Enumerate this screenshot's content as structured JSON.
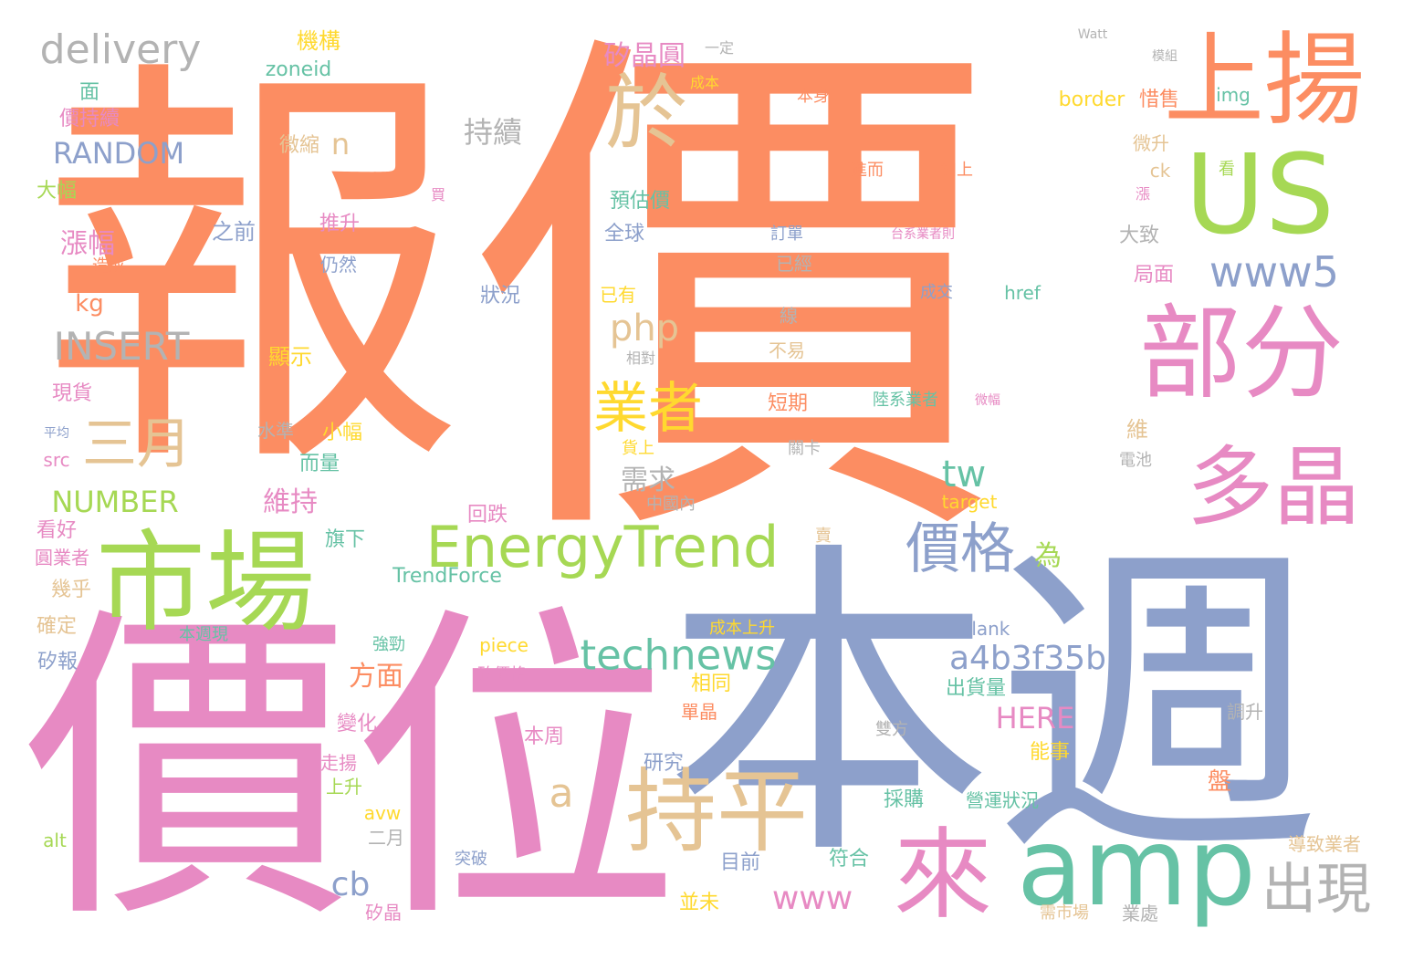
{
  "cloud": {
    "colors": {
      "orange": "#fc8d62",
      "blue": "#8da0cb",
      "pink": "#e78ac3",
      "green": "#a6d854",
      "yellow": "#ffd92f",
      "tan": "#e5c494",
      "gray": "#b3b3b3",
      "teal": "#66c2a5"
    },
    "words": [
      {
        "t": "報",
        "c": "orange"
      },
      {
        "t": "價",
        "c": "orange"
      },
      {
        "t": "本週",
        "c": "blue"
      },
      {
        "t": "價位",
        "c": "pink"
      },
      {
        "t": "上揚",
        "c": "orange"
      },
      {
        "t": "US",
        "c": "green"
      },
      {
        "t": "市場",
        "c": "green"
      },
      {
        "t": "部分",
        "c": "pink"
      },
      {
        "t": "amp",
        "c": "teal"
      },
      {
        "t": "持平",
        "c": "tan"
      },
      {
        "t": "來",
        "c": "pink"
      },
      {
        "t": "多晶",
        "c": "pink"
      },
      {
        "t": "於",
        "c": "tan"
      },
      {
        "t": "EnergyTrend",
        "c": "green"
      },
      {
        "t": "價格",
        "c": "blue"
      },
      {
        "t": "出現",
        "c": "gray"
      },
      {
        "t": "三月",
        "c": "tan"
      },
      {
        "t": "業者",
        "c": "yellow"
      },
      {
        "t": "technews",
        "c": "teal"
      },
      {
        "t": "www5",
        "c": "blue"
      },
      {
        "t": "a4b3f35b",
        "c": "blue"
      },
      {
        "t": "delivery",
        "c": "gray"
      },
      {
        "t": "INSERT",
        "c": "gray"
      },
      {
        "t": "php",
        "c": "tan"
      },
      {
        "t": "RANDOM",
        "c": "blue"
      },
      {
        "t": "NUMBER",
        "c": "green"
      },
      {
        "t": "www",
        "c": "pink"
      },
      {
        "t": "tw",
        "c": "teal"
      },
      {
        "t": "a",
        "c": "tan"
      },
      {
        "t": "cb",
        "c": "blue"
      },
      {
        "t": "持續",
        "c": "gray"
      },
      {
        "t": "矽晶圓",
        "c": "pink"
      },
      {
        "t": "漲幅",
        "c": "pink"
      },
      {
        "t": "方面",
        "c": "orange"
      },
      {
        "t": "需求",
        "c": "gray"
      },
      {
        "t": "維持",
        "c": "pink"
      },
      {
        "t": "HERE",
        "c": "pink"
      },
      {
        "t": "n",
        "c": "tan"
      },
      {
        "t": "kg",
        "c": "orange"
      },
      {
        "t": "為",
        "c": "green"
      },
      {
        "t": "TrendForce",
        "c": "teal"
      },
      {
        "t": "機構",
        "c": "yellow"
      },
      {
        "t": "zoneid",
        "c": "teal"
      },
      {
        "t": "面",
        "c": "teal"
      },
      {
        "t": "價持續",
        "c": "pink"
      },
      {
        "t": "微縮",
        "c": "tan"
      },
      {
        "t": "大幅",
        "c": "green"
      },
      {
        "t": "之前",
        "c": "blue"
      },
      {
        "t": "推升",
        "c": "pink"
      },
      {
        "t": "造成",
        "c": "orange"
      },
      {
        "t": "仍然",
        "c": "blue"
      },
      {
        "t": "顯示",
        "c": "yellow"
      },
      {
        "t": "現貨",
        "c": "pink"
      },
      {
        "t": "平均",
        "c": "blue"
      },
      {
        "t": "水準",
        "c": "gray"
      },
      {
        "t": "小幅",
        "c": "yellow"
      },
      {
        "t": "src",
        "c": "pink"
      },
      {
        "t": "而量",
        "c": "teal"
      },
      {
        "t": "看好",
        "c": "pink"
      },
      {
        "t": "回跌",
        "c": "pink"
      },
      {
        "t": "旗下",
        "c": "teal"
      },
      {
        "t": "圓業者",
        "c": "pink"
      },
      {
        "t": "幾乎",
        "c": "tan"
      },
      {
        "t": "確定",
        "c": "tan"
      },
      {
        "t": "本週現",
        "c": "teal"
      },
      {
        "t": "強勁",
        "c": "teal"
      },
      {
        "t": "矽報",
        "c": "blue"
      },
      {
        "t": "piece",
        "c": "yellow"
      },
      {
        "t": "矽價格",
        "c": "pink"
      },
      {
        "t": "變化",
        "c": "pink"
      },
      {
        "t": "本周",
        "c": "pink"
      },
      {
        "t": "走揚",
        "c": "pink"
      },
      {
        "t": "上升",
        "c": "green"
      },
      {
        "t": "avw",
        "c": "yellow"
      },
      {
        "t": "二月",
        "c": "gray"
      },
      {
        "t": "alt",
        "c": "green"
      },
      {
        "t": "突破",
        "c": "blue"
      },
      {
        "t": "矽晶",
        "c": "pink"
      },
      {
        "t": "並未",
        "c": "yellow"
      },
      {
        "t": "目前",
        "c": "blue"
      },
      {
        "t": "符合",
        "c": "teal"
      },
      {
        "t": "研究",
        "c": "blue"
      },
      {
        "t": "單晶",
        "c": "orange"
      },
      {
        "t": "相同",
        "c": "yellow"
      },
      {
        "t": "成本上升",
        "c": "yellow"
      },
      {
        "t": "賣",
        "c": "tan"
      },
      {
        "t": "中國內",
        "c": "gray"
      },
      {
        "t": "貨上",
        "c": "yellow"
      },
      {
        "t": "關卡",
        "c": "gray"
      },
      {
        "t": "短期",
        "c": "orange"
      },
      {
        "t": "不易",
        "c": "tan"
      },
      {
        "t": "相對",
        "c": "gray"
      },
      {
        "t": "線",
        "c": "gray"
      },
      {
        "t": "已有",
        "c": "yellow"
      },
      {
        "t": "狀況",
        "c": "blue"
      },
      {
        "t": "已經",
        "c": "gray"
      },
      {
        "t": "訂單",
        "c": "blue"
      },
      {
        "t": "全球",
        "c": "blue"
      },
      {
        "t": "預估價",
        "c": "teal"
      },
      {
        "t": "買",
        "c": "pink"
      },
      {
        "t": "進而",
        "c": "orange"
      },
      {
        "t": "加上",
        "c": "orange"
      },
      {
        "t": "本身",
        "c": "orange"
      },
      {
        "t": "成本",
        "c": "yellow"
      },
      {
        "t": "一定",
        "c": "gray"
      },
      {
        "t": "Watt",
        "c": "gray"
      },
      {
        "t": "模組",
        "c": "gray"
      },
      {
        "t": "border",
        "c": "yellow"
      },
      {
        "t": "惜售",
        "c": "orange"
      },
      {
        "t": "img",
        "c": "teal"
      },
      {
        "t": "微升",
        "c": "tan"
      },
      {
        "t": "ck",
        "c": "tan"
      },
      {
        "t": "看",
        "c": "green"
      },
      {
        "t": "漲",
        "c": "pink"
      },
      {
        "t": "台系業者則",
        "c": "pink"
      },
      {
        "t": "大致",
        "c": "gray"
      },
      {
        "t": "局面",
        "c": "pink"
      },
      {
        "t": "成交",
        "c": "blue"
      },
      {
        "t": "href",
        "c": "teal"
      },
      {
        "t": "陸系業者",
        "c": "teal"
      },
      {
        "t": "微幅",
        "c": "pink"
      },
      {
        "t": "維",
        "c": "tan"
      },
      {
        "t": "電池",
        "c": "gray"
      },
      {
        "t": "target",
        "c": "yellow"
      },
      {
        "t": "blank",
        "c": "blue"
      },
      {
        "t": "出貨量",
        "c": "teal"
      },
      {
        "t": "能事",
        "c": "yellow"
      },
      {
        "t": "調升",
        "c": "gray"
      },
      {
        "t": "雙方",
        "c": "gray"
      },
      {
        "t": "盤",
        "c": "orange"
      },
      {
        "t": "採購",
        "c": "teal"
      },
      {
        "t": "營運狀況",
        "c": "teal"
      },
      {
        "t": "導致業者",
        "c": "tan"
      },
      {
        "t": "需市場",
        "c": "tan"
      },
      {
        "t": "業處",
        "c": "gray"
      }
    ]
  }
}
